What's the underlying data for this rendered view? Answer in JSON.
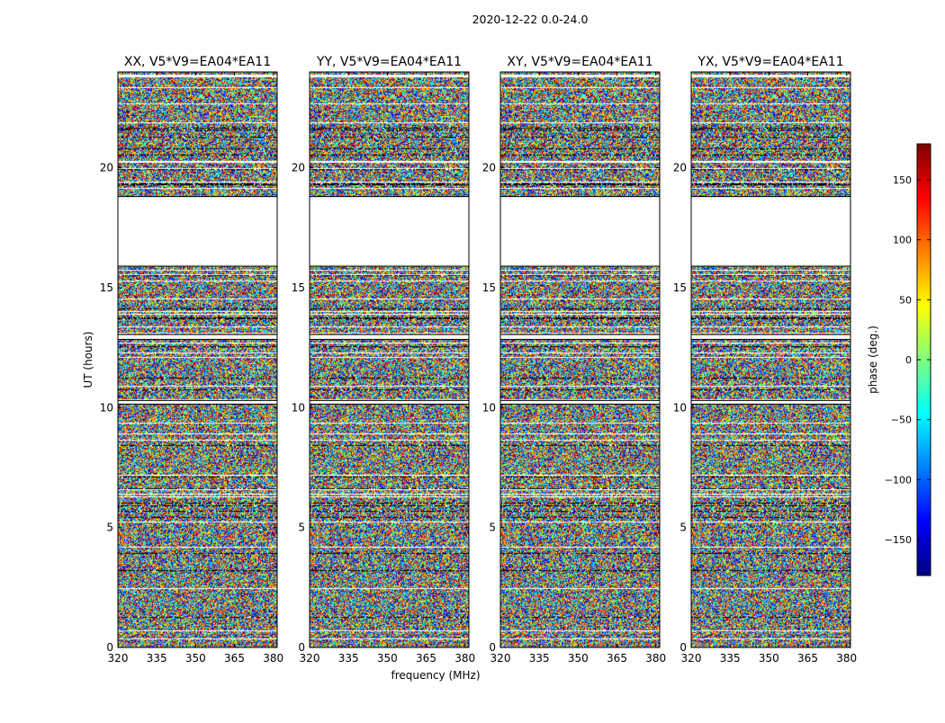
{
  "chart_data": {
    "type": "heatmap",
    "title": "2020-12-22 0.0-24.0",
    "xlabel": "frequency (MHz)",
    "ylabel": "UT (hours)",
    "xlim": [
      320,
      381.5
    ],
    "ylim": [
      0,
      24
    ],
    "xticks": [
      "320",
      "335",
      "350",
      "365",
      "380"
    ],
    "xtick_values": [
      320,
      335,
      350,
      365,
      380
    ],
    "yticks": [
      "0",
      "5",
      "10",
      "15",
      "20"
    ],
    "ytick_values": [
      0,
      5,
      10,
      15,
      20
    ],
    "panels": [
      {
        "name": "XX",
        "title": "XX, V5*V9=EA04*EA11"
      },
      {
        "name": "YY",
        "title": "YY, V5*V9=EA04*EA11"
      },
      {
        "name": "XY",
        "title": "XY, V5*V9=EA04*EA11"
      },
      {
        "name": "YX",
        "title": "YX, V5*V9=EA04*EA11"
      }
    ],
    "data_gaps_hours": [
      [
        18.8,
        15.9
      ],
      [
        13.05,
        12.85
      ],
      [
        10.3,
        10.15
      ]
    ],
    "colorbar": {
      "label": "phase (deg.)",
      "range": [
        -180,
        180
      ],
      "ticks": [
        "150",
        "100",
        "50",
        "0",
        "−50",
        "−100",
        "−150"
      ],
      "tick_values": [
        150,
        100,
        50,
        0,
        -50,
        -100,
        -150
      ],
      "colormap": "jet",
      "colors": [
        "#00007f",
        "#0000ff",
        "#007fff",
        "#00ffff",
        "#7fff7f",
        "#ffff00",
        "#ff7f00",
        "#ff0000",
        "#7f0000"
      ]
    }
  }
}
